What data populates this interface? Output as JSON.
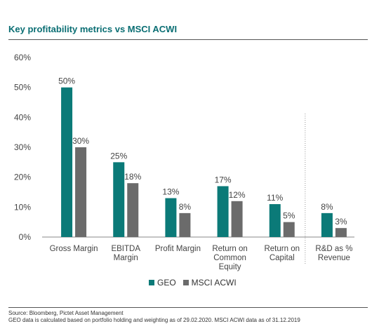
{
  "title": "Key profitability metrics vs MSCI ACWI",
  "colors": {
    "accent": "#0a6e73",
    "geo": "#0b7a78",
    "msci": "#6b6b6b",
    "grid": "#999999"
  },
  "legend": {
    "geo": "GEO",
    "msci": "MSCI ACWI"
  },
  "source_lines": [
    "Source:  Bloomberg, Pictet Asset Management",
    "GEO data is calculated based on portfolio holding and weighting as of 29.02.2020. MSCI ACWI data as of 31.12.2019"
  ],
  "chart_data": {
    "type": "bar",
    "categories": [
      [
        "Gross Margin"
      ],
      [
        "EBITDA",
        "Margin"
      ],
      [
        "Profit Margin"
      ],
      [
        "Return on",
        "Common",
        "Equity"
      ],
      [
        "Return on",
        "Capital"
      ],
      [
        "R&D as %",
        "Revenue"
      ]
    ],
    "series": [
      {
        "name": "GEO",
        "values": [
          50,
          25,
          13,
          17,
          11,
          8
        ],
        "labels": [
          "50%",
          "25%",
          "13%",
          "17%",
          "11%",
          "8%"
        ]
      },
      {
        "name": "MSCI ACWI",
        "values": [
          30,
          18,
          8,
          12,
          5,
          3
        ],
        "labels": [
          "30%",
          "18%",
          "8%",
          "12%",
          "5%",
          "3%"
        ]
      }
    ],
    "yticks": [
      "0%",
      "10%",
      "20%",
      "30%",
      "40%",
      "50%",
      "60%"
    ],
    "ylim": [
      0,
      60
    ],
    "separator_before_category": 5,
    "legend_position": "bottom"
  }
}
